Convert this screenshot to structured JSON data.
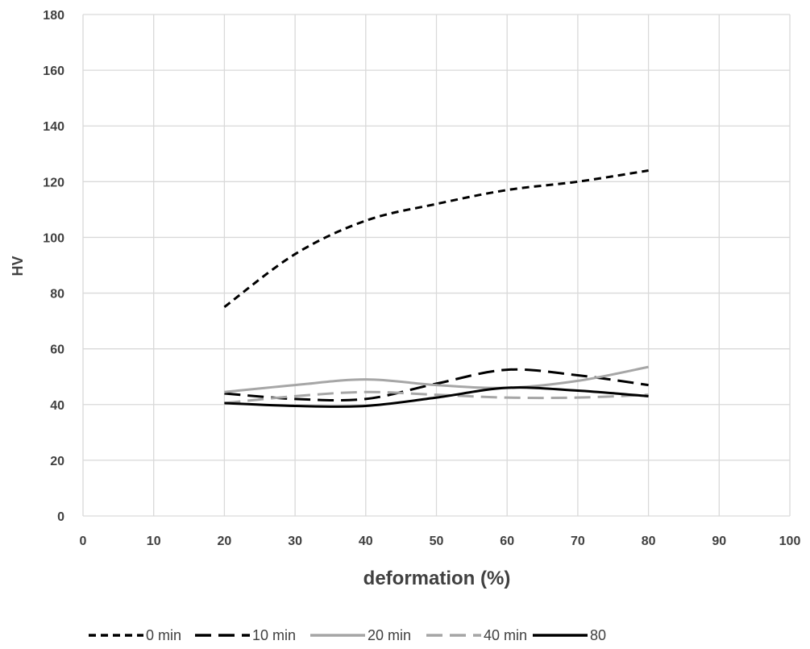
{
  "chart_data": {
    "type": "line",
    "title": "",
    "xlabel": "deformation (%)",
    "ylabel": "HV",
    "xlim": [
      0,
      100
    ],
    "ylim": [
      0,
      180
    ],
    "xticks": [
      0,
      10,
      20,
      30,
      40,
      50,
      60,
      70,
      80,
      90,
      100
    ],
    "yticks": [
      0,
      20,
      40,
      60,
      80,
      100,
      120,
      140,
      160,
      180
    ],
    "grid": true,
    "legend_position": "bottom",
    "series": [
      {
        "name": "0 min",
        "color": "#000000",
        "dash": "short-dash",
        "x": [
          20,
          30,
          40,
          50,
          60,
          70,
          80
        ],
        "y": [
          75,
          94,
          106,
          112,
          117,
          120,
          124
        ]
      },
      {
        "name": "10 min",
        "color": "#000000",
        "dash": "long-dash",
        "x": [
          20,
          30,
          40,
          50,
          60,
          70,
          80
        ],
        "y": [
          44,
          42,
          42,
          47.5,
          52.5,
          50.5,
          47
        ]
      },
      {
        "name": "20 min",
        "color": "#a6a6a6",
        "dash": "solid",
        "x": [
          20,
          30,
          40,
          50,
          60,
          70,
          80
        ],
        "y": [
          44.5,
          47,
          49,
          47,
          46,
          48.5,
          53.5
        ]
      },
      {
        "name": "40 min",
        "color": "#a6a6a6",
        "dash": "long-dash",
        "x": [
          20,
          30,
          40,
          50,
          60,
          70,
          80
        ],
        "y": [
          40.5,
          43,
          44.5,
          43.5,
          42.5,
          42.5,
          43.5
        ]
      },
      {
        "name": "80",
        "color": "#000000",
        "dash": "solid",
        "x": [
          20,
          30,
          40,
          50,
          60,
          70,
          80
        ],
        "y": [
          40.5,
          39.5,
          39.5,
          42.5,
          46,
          45,
          43
        ]
      }
    ]
  }
}
